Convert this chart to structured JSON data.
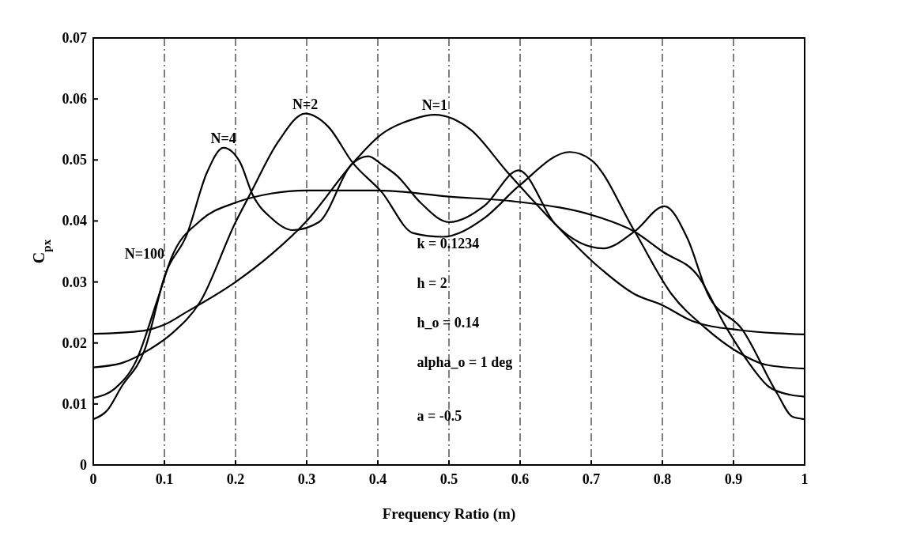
{
  "chart_data": {
    "type": "line",
    "xlabel": "Frequency Ratio (m)",
    "ylabel": "C$_{px}$",
    "xlim": [
      0,
      1
    ],
    "xticks": [
      0,
      0.1,
      0.2,
      0.3,
      0.4,
      0.5,
      0.6,
      0.7,
      0.8,
      0.9,
      1
    ],
    "ylim": [
      0,
      0.07
    ],
    "yticks": [
      0,
      0.01,
      0.02,
      0.03,
      0.04,
      0.05,
      0.06,
      0.07
    ],
    "grid": "x",
    "marker": "none",
    "line_style": "solid",
    "series": [
      {
        "color": "#000000",
        "x": [
          0,
          0.07,
          0.1,
          0.13,
          0.2,
          0.25,
          0.3,
          0.365,
          0.405,
          0.45,
          0.48,
          0.53,
          0.58,
          0.65,
          0.71,
          0.761,
          0.8,
          0.842,
          0.909,
          0.96,
          1
        ],
        "values": [
          0.0215,
          0.022,
          0.023,
          0.025,
          0.03,
          0.0345,
          0.04,
          0.0495,
          0.0542,
          0.0567,
          0.0574,
          0.055,
          0.0483,
          0.0394,
          0.0325,
          0.028,
          0.0262,
          0.0236,
          0.0221,
          0.0216,
          0.0214
        ]
      },
      {
        "color": "#000000",
        "x": [
          0,
          0.04,
          0.08,
          0.11,
          0.15,
          0.2,
          0.22,
          0.26,
          0.298,
          0.33,
          0.365,
          0.405,
          0.45,
          0.491,
          0.55,
          0.598,
          0.67,
          0.7,
          0.761,
          0.813,
          0.86,
          0.902,
          0.947,
          1
        ],
        "values": [
          0.016,
          0.0167,
          0.019,
          0.0215,
          0.0267,
          0.0398,
          0.0443,
          0.053,
          0.0576,
          0.0555,
          0.0495,
          0.0448,
          0.038,
          0.0374,
          0.0405,
          0.0457,
          0.0513,
          0.05,
          0.0383,
          0.028,
          0.0225,
          0.0188,
          0.0164,
          0.0158
        ]
      },
      {
        "color": "#000000",
        "x": [
          0,
          0.02,
          0.039,
          0.072,
          0.102,
          0.131,
          0.16,
          0.183,
          0.206,
          0.224,
          0.25,
          0.28,
          0.317,
          0.365,
          0.387,
          0.405,
          0.428,
          0.46,
          0.5,
          0.55,
          0.598,
          0.65,
          0.717,
          0.761,
          0.803,
          0.835,
          0.864,
          0.913,
          0.961,
          0.983,
          1
        ],
        "values": [
          0.0075,
          0.009,
          0.0127,
          0.0188,
          0.0315,
          0.0376,
          0.048,
          0.052,
          0.0497,
          0.0443,
          0.0405,
          0.0385,
          0.0398,
          0.0495,
          0.0506,
          0.0493,
          0.0473,
          0.043,
          0.0398,
          0.0425,
          0.0483,
          0.0394,
          0.0355,
          0.0383,
          0.0424,
          0.0372,
          0.028,
          0.0221,
          0.0118,
          0.0079,
          0.0075
        ]
      },
      {
        "color": "#000000",
        "x": [
          0,
          0.03,
          0.06,
          0.09,
          0.11,
          0.15,
          0.2,
          0.25,
          0.3,
          0.35,
          0.4,
          0.5,
          0.6,
          0.7,
          0.76,
          0.8,
          0.85,
          0.89,
          0.92,
          0.95,
          0.98,
          1
        ],
        "values": [
          0.011,
          0.0125,
          0.017,
          0.027,
          0.034,
          0.04,
          0.043,
          0.0445,
          0.045,
          0.045,
          0.045,
          0.044,
          0.0431,
          0.041,
          0.0383,
          0.035,
          0.031,
          0.0225,
          0.017,
          0.0128,
          0.0115,
          0.0112
        ]
      }
    ],
    "annotations": [
      {
        "text": "N=4",
        "x": 0.183,
        "y": 0.052
      },
      {
        "text": "N=2",
        "x": 0.298,
        "y": 0.0576
      },
      {
        "text": "N=1",
        "x": 0.48,
        "y": 0.0574
      },
      {
        "text": "N=100",
        "x": 0.1,
        "y": 0.033
      },
      "k = 0.1234",
      "h = 2",
      "h_o = 0.14",
      "alpha_o = 1 deg",
      "a = -0.5"
    ]
  }
}
